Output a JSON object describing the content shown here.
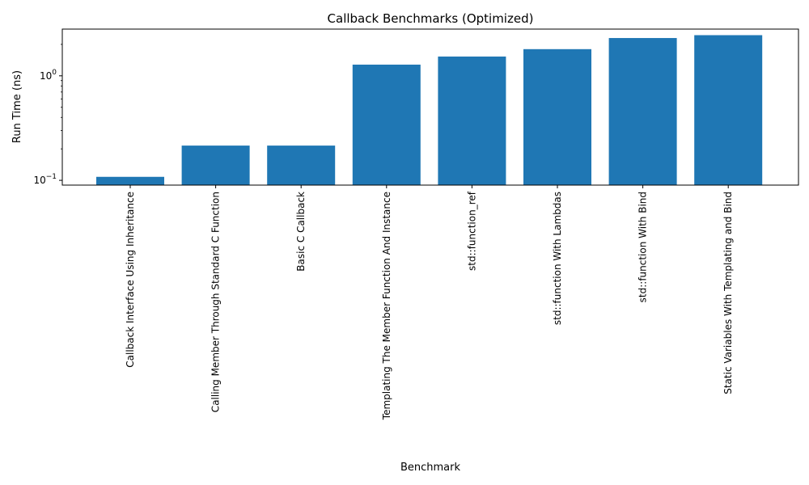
{
  "chart_data": {
    "type": "bar",
    "title": "Callback Benchmarks (Optimized)",
    "xlabel": "Benchmark",
    "ylabel": "Run Time (ns)",
    "yscale": "log",
    "ylim": [
      0.09,
      2.8
    ],
    "grid": false,
    "bar_color": "#1f77b4",
    "y_ticks": [
      {
        "value": 0.1,
        "base": "10",
        "exp": "−1"
      },
      {
        "value": 1,
        "base": "10",
        "exp": "0"
      }
    ],
    "categories": [
      "Callback Interface Using Inheritance",
      "Calling Member Through Standard C Function",
      "Basic C Callback",
      "Templating The Member Function And Instance",
      "std::function_ref",
      "std::function With Lambdas",
      "std::function With Bind",
      "Static Variables With Templating and Bind"
    ],
    "values": [
      0.108,
      0.215,
      0.215,
      1.28,
      1.53,
      1.8,
      2.3,
      2.45
    ]
  }
}
